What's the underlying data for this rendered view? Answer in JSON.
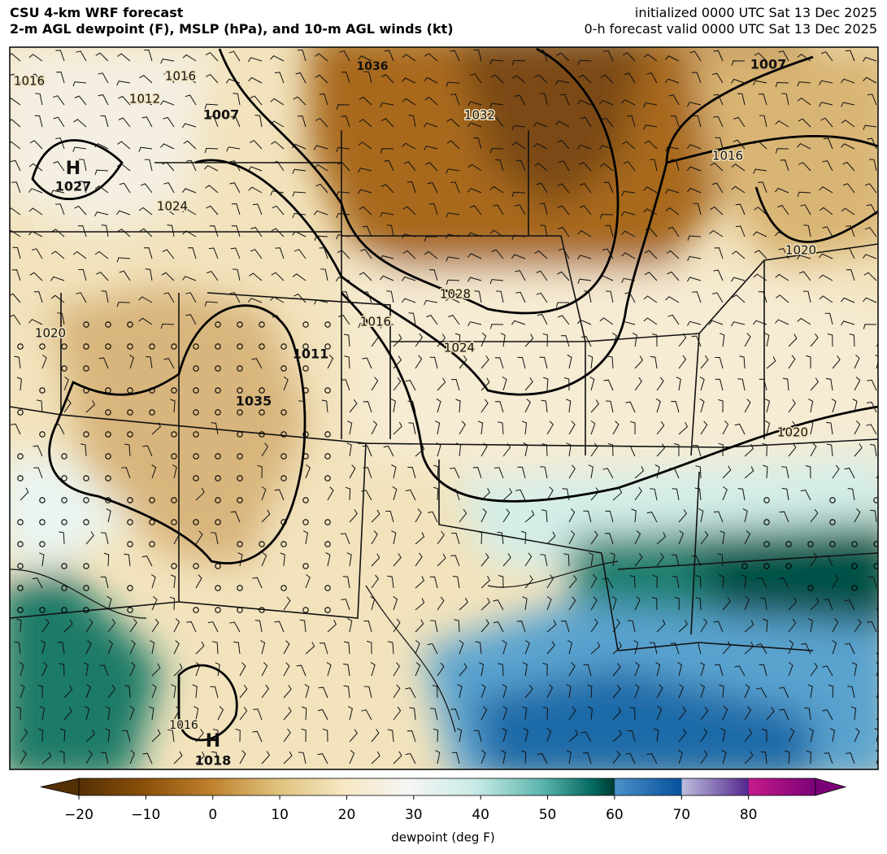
{
  "header": {
    "title": "CSU 4-km WRF forecast",
    "subtitle": "2-m AGL dewpoint (F), MSLP (hPa), and 10-m AGL winds (kt)",
    "init": "initialized 0000 UTC Sat 13 Dec 2025",
    "valid": "0-h forecast valid 0000 UTC Sat 13 Dec 2025"
  },
  "map": {
    "labels": [
      {
        "text": "1036"
      },
      {
        "text": "1007"
      },
      {
        "text": "1007"
      },
      {
        "text": "H"
      },
      {
        "text": "1027"
      },
      {
        "text": "1024"
      },
      {
        "text": "1032"
      },
      {
        "text": "1016"
      },
      {
        "text": "1020"
      },
      {
        "text": "1028"
      },
      {
        "text": "1024"
      },
      {
        "text": "1016"
      },
      {
        "text": "1020"
      },
      {
        "text": "1011"
      },
      {
        "text": "1035"
      },
      {
        "text": "1020"
      },
      {
        "text": "1016"
      },
      {
        "text": "H"
      },
      {
        "text": "1018"
      },
      {
        "text": "1016"
      },
      {
        "text": "1012"
      },
      {
        "text": "1016"
      }
    ]
  },
  "colorbar": {
    "label": "dewpoint (deg F)",
    "lim": [
      -20,
      90
    ],
    "ticks": [
      {
        "value": -20,
        "label": "−20"
      },
      {
        "value": -10,
        "label": "−10"
      },
      0,
      10,
      20,
      30,
      40,
      50,
      60,
      70,
      80
    ]
  }
}
